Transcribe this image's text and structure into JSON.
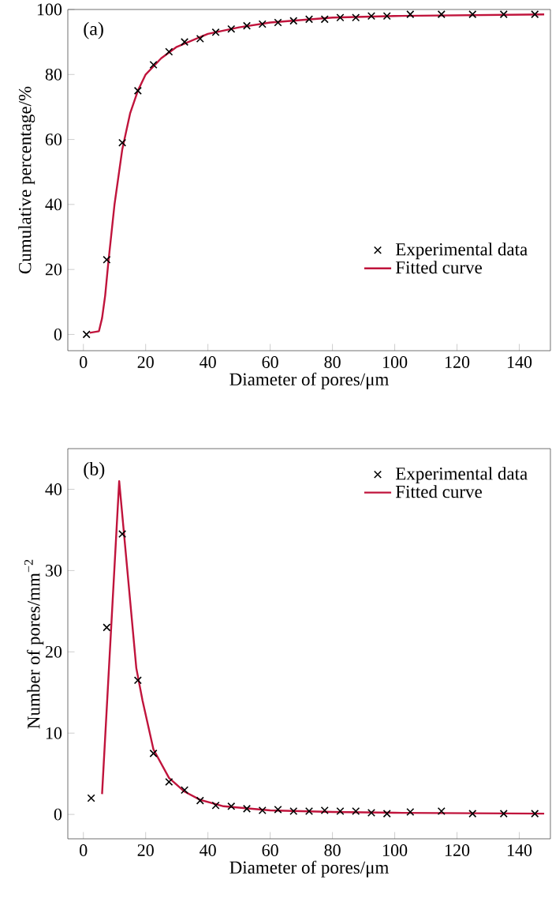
{
  "chart_data": [
    {
      "type": "scatter",
      "annotations": [
        "(a)"
      ],
      "xlabel": "Diameter of pores/μm",
      "ylabel": "Cumulative percentage/%",
      "xlim": [
        -5,
        150
      ],
      "ylim": [
        -5,
        100
      ],
      "xticks": [
        0,
        20,
        40,
        60,
        80,
        100,
        120,
        140
      ],
      "yticks": [
        0,
        20,
        40,
        60,
        80,
        100
      ],
      "legend": "bottom right",
      "series": [
        {
          "name": "Experimental data",
          "marker": "cross",
          "color": "#000000",
          "x": [
            1,
            7.5,
            12.5,
            17.5,
            22.5,
            27.5,
            32.5,
            37.5,
            42.5,
            47.5,
            52.5,
            57.5,
            62.5,
            67.5,
            72.5,
            77.5,
            82.5,
            87.5,
            92.5,
            97.5,
            105,
            115,
            125,
            135,
            145
          ],
          "values": [
            0,
            23,
            59,
            75,
            83,
            87,
            90,
            91,
            93,
            94,
            95,
            95.5,
            96,
            96.5,
            97,
            97,
            97.5,
            97.5,
            98,
            98,
            98.5,
            98.5,
            98.5,
            98.5,
            98.5
          ]
        },
        {
          "name": "Fitted curve",
          "type": "line",
          "color": "#c0143c",
          "x": [
            2,
            5,
            6,
            7,
            8,
            10,
            12.5,
            15,
            17.5,
            20,
            25,
            30,
            40,
            50,
            60,
            80,
            100,
            148
          ],
          "values": [
            0.5,
            1,
            5,
            12,
            22,
            40,
            57,
            68,
            75,
            80,
            85,
            88.5,
            92.5,
            94.5,
            96,
            97.5,
            98,
            98.5
          ]
        }
      ]
    },
    {
      "type": "scatter",
      "annotations": [
        "(b)"
      ],
      "xlabel": "Diameter of pores/μm",
      "ylabel": "Number of pores/mm$^{−2}$",
      "xlim": [
        -5,
        150
      ],
      "ylim": [
        -3,
        45
      ],
      "xticks": [
        0,
        20,
        40,
        60,
        80,
        100,
        120,
        140
      ],
      "yticks": [
        0,
        10,
        20,
        30,
        40
      ],
      "legend": "top right",
      "series": [
        {
          "name": "Experimental data",
          "marker": "cross",
          "color": "#000000",
          "x": [
            2.5,
            7.5,
            12.5,
            17.5,
            22.5,
            27.5,
            32.5,
            37.5,
            42.5,
            47.5,
            52.5,
            57.5,
            62.5,
            67.5,
            72.5,
            77.5,
            82.5,
            87.5,
            92.5,
            97.5,
            105,
            115,
            125,
            135,
            145
          ],
          "values": [
            2,
            23,
            34.5,
            16.5,
            7.5,
            4,
            3,
            1.7,
            1.1,
            1,
            0.7,
            0.5,
            0.6,
            0.4,
            0.4,
            0.5,
            0.4,
            0.4,
            0.2,
            0.1,
            0.3,
            0.4,
            0.1,
            0.1,
            0.1
          ]
        },
        {
          "name": "Fitted curve",
          "type": "line",
          "color": "#c0143c",
          "x": [
            6,
            11.5,
            17,
            19,
            22.5,
            27.5,
            32.5,
            37.5,
            45,
            60,
            80,
            100,
            148
          ],
          "values": [
            2.5,
            41,
            18,
            14,
            8,
            4.5,
            2.8,
            1.8,
            1,
            0.5,
            0.3,
            0.2,
            0.1
          ]
        }
      ]
    }
  ]
}
